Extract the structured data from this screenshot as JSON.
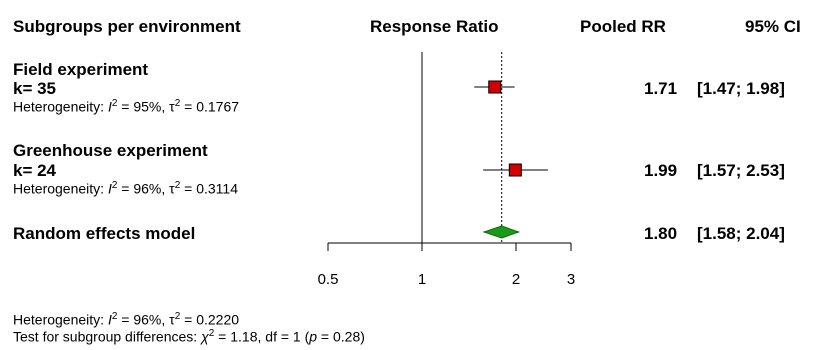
{
  "headers": {
    "subgroups": "Subgroups per environment",
    "response_ratio": "Response Ratio",
    "pooled_rr": "Pooled RR",
    "ci": "95% CI"
  },
  "groups": [
    {
      "title": "Field experiment",
      "k": "k= 35",
      "het_prefix": "Heterogeneity: ",
      "het_i2": "I",
      "het_i2_val": " = 95%, ",
      "het_tau": "τ",
      "het_tau_val": " = 0.1767",
      "pooled": "1.71",
      "ci": "[1.47;  1.98]"
    },
    {
      "title": "Greenhouse experiment",
      "k": "k= 24",
      "het_prefix": "Heterogeneity: ",
      "het_i2": "I",
      "het_i2_val": " = 96%, ",
      "het_tau": "τ",
      "het_tau_val": " = 0.3114",
      "pooled": "1.99",
      "ci": "[1.57;  2.53]"
    }
  ],
  "overall": {
    "title": "Random effects model",
    "pooled": "1.80",
    "ci": "[1.58;  2.04]"
  },
  "footer": {
    "het_prefix": "Heterogeneity: ",
    "het_i2": "I",
    "het_i2_val": " = 96%, ",
    "het_tau": "τ",
    "het_tau_val": " = 0.2220",
    "test_prefix": "Test for subgroup differences: ",
    "test_chi": "χ",
    "test_rest": " = 1.18, df = 1 (",
    "test_p": "p",
    "test_end": " = 0.28)"
  },
  "colors": {
    "square": "#d40000",
    "diamond": "#1a9a1a",
    "line": "#000000"
  },
  "chart_data": {
    "type": "forest",
    "scale": "log",
    "xlim": [
      0.5,
      3
    ],
    "ticks": [
      0.5,
      1,
      2,
      3
    ],
    "tick_labels": [
      "0.5",
      "1",
      "2",
      "3"
    ],
    "reference_line": 1,
    "pooled_dotted_line": 1.8,
    "series": [
      {
        "name": "Field experiment",
        "estimate": 1.71,
        "lower": 1.47,
        "upper": 1.98
      },
      {
        "name": "Greenhouse experiment",
        "estimate": 1.99,
        "lower": 1.57,
        "upper": 2.53
      },
      {
        "name": "Random effects model",
        "estimate": 1.8,
        "lower": 1.58,
        "upper": 2.04,
        "shape": "diamond"
      }
    ]
  }
}
